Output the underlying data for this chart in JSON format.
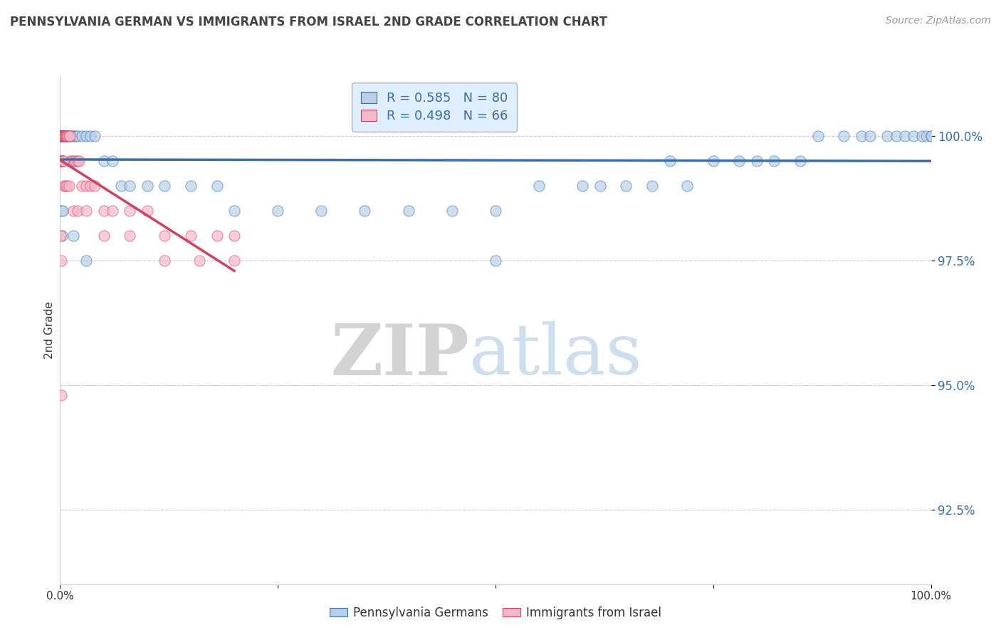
{
  "title": "PENNSYLVANIA GERMAN VS IMMIGRANTS FROM ISRAEL 2ND GRADE CORRELATION CHART",
  "source_text": "Source: ZipAtlas.com",
  "ylabel": "2nd Grade",
  "legend_labels": [
    "Pennsylvania Germans",
    "Immigrants from Israel"
  ],
  "blue_R": 0.585,
  "blue_N": 80,
  "pink_R": 0.498,
  "pink_N": 66,
  "blue_color": "#b8d0e8",
  "pink_color": "#f5b8c8",
  "blue_line_color": "#3a6ea8",
  "pink_line_color": "#d04060",
  "marker_size": 120,
  "xlim": [
    0.0,
    100.0
  ],
  "ylim": [
    91.0,
    101.2
  ],
  "yticks": [
    92.5,
    95.0,
    97.5,
    100.0
  ],
  "ytick_labels": [
    "92.5%",
    "95.0%",
    "97.5%",
    "100.0%"
  ],
  "xticks": [
    0.0,
    25.0,
    50.0,
    75.0,
    100.0
  ],
  "xtick_labels": [
    "0.0%",
    "",
    "",
    "",
    "100.0%"
  ],
  "blue_x": [
    0.05,
    0.08,
    0.1,
    0.12,
    0.15,
    0.18,
    0.2,
    0.22,
    0.25,
    0.28,
    0.3,
    0.32,
    0.35,
    0.38,
    0.4,
    0.42,
    0.45,
    0.5,
    0.55,
    0.6,
    0.65,
    0.7,
    0.8,
    0.9,
    1.0,
    1.1,
    1.2,
    1.4,
    1.6,
    1.8,
    2.0,
    2.5,
    3.0,
    3.5,
    4.0,
    5.0,
    6.0,
    7.0,
    8.0,
    10.0,
    12.0,
    15.0,
    18.0,
    20.0,
    25.0,
    30.0,
    35.0,
    40.0,
    45.0,
    50.0,
    55.0,
    60.0,
    62.0,
    65.0,
    68.0,
    70.0,
    72.0,
    75.0,
    78.0,
    80.0,
    82.0,
    85.0,
    87.0,
    90.0,
    92.0,
    93.0,
    95.0,
    96.0,
    97.0,
    98.0,
    99.0,
    99.5,
    100.0,
    0.15,
    0.2,
    0.3,
    1.5,
    3.0,
    50.0,
    100.0
  ],
  "blue_y": [
    100.0,
    100.0,
    100.0,
    100.0,
    100.0,
    100.0,
    100.0,
    100.0,
    100.0,
    100.0,
    100.0,
    100.0,
    100.0,
    100.0,
    100.0,
    100.0,
    100.0,
    100.0,
    100.0,
    100.0,
    100.0,
    100.0,
    100.0,
    100.0,
    100.0,
    100.0,
    100.0,
    100.0,
    100.0,
    100.0,
    100.0,
    100.0,
    100.0,
    100.0,
    100.0,
    99.5,
    99.5,
    99.0,
    99.0,
    99.0,
    99.0,
    99.0,
    99.0,
    98.5,
    98.5,
    98.5,
    98.5,
    98.5,
    98.5,
    98.5,
    99.0,
    99.0,
    99.0,
    99.0,
    99.0,
    99.5,
    99.0,
    99.5,
    99.5,
    99.5,
    99.5,
    99.5,
    100.0,
    100.0,
    100.0,
    100.0,
    100.0,
    100.0,
    100.0,
    100.0,
    100.0,
    100.0,
    100.0,
    98.5,
    98.0,
    98.5,
    98.0,
    97.5,
    97.5,
    100.0
  ],
  "pink_x": [
    0.05,
    0.08,
    0.1,
    0.12,
    0.15,
    0.18,
    0.2,
    0.22,
    0.25,
    0.28,
    0.3,
    0.32,
    0.35,
    0.38,
    0.4,
    0.45,
    0.5,
    0.55,
    0.6,
    0.65,
    0.7,
    0.75,
    0.8,
    0.9,
    1.0,
    1.1,
    1.2,
    1.4,
    1.6,
    1.8,
    2.0,
    2.2,
    2.5,
    3.0,
    3.5,
    4.0,
    5.0,
    6.0,
    8.0,
    10.0,
    12.0,
    15.0,
    18.0,
    20.0,
    0.1,
    0.15,
    0.2,
    0.25,
    0.3,
    0.35,
    0.4,
    0.5,
    0.6,
    0.8,
    1.0,
    1.5,
    2.0,
    3.0,
    5.0,
    8.0,
    12.0,
    16.0,
    20.0,
    0.08,
    0.1,
    0.12
  ],
  "pink_y": [
    100.0,
    100.0,
    100.0,
    100.0,
    100.0,
    100.0,
    100.0,
    100.0,
    100.0,
    100.0,
    100.0,
    100.0,
    100.0,
    100.0,
    100.0,
    100.0,
    100.0,
    100.0,
    100.0,
    100.0,
    100.0,
    100.0,
    100.0,
    100.0,
    100.0,
    100.0,
    99.5,
    99.5,
    99.5,
    99.5,
    99.5,
    99.5,
    99.0,
    99.0,
    99.0,
    99.0,
    98.5,
    98.5,
    98.5,
    98.5,
    98.0,
    98.0,
    98.0,
    98.0,
    99.5,
    99.5,
    99.5,
    99.5,
    99.5,
    99.5,
    99.5,
    99.0,
    99.0,
    99.0,
    99.0,
    98.5,
    98.5,
    98.5,
    98.0,
    98.0,
    97.5,
    97.5,
    97.5,
    98.0,
    97.5,
    94.8
  ]
}
